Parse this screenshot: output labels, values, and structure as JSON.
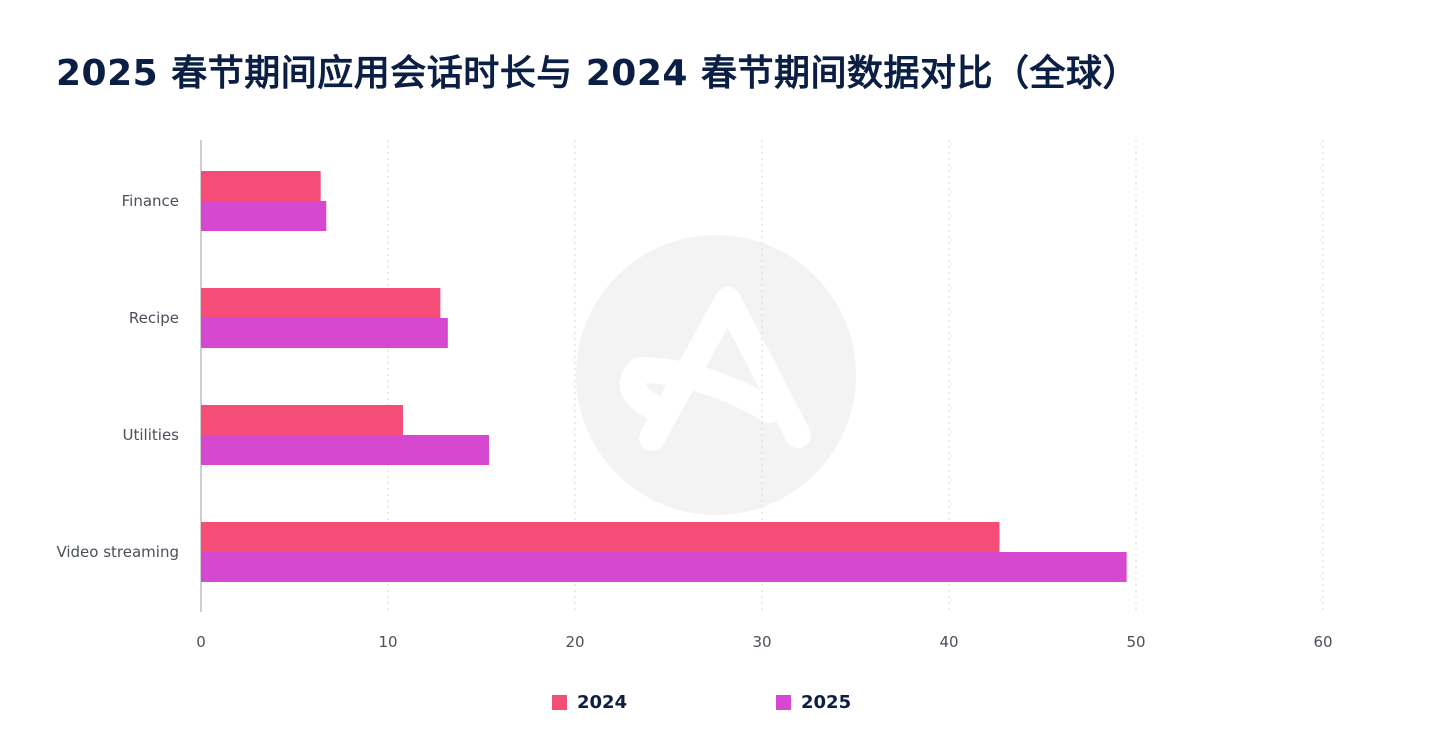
{
  "chart_data": {
    "type": "bar",
    "orientation": "horizontal",
    "title": "2025 春节期间应用会话时长与 2024 春节期间数据对比（全球）",
    "categories": [
      "Finance",
      "Recipe",
      "Utilities",
      "Video streaming"
    ],
    "series": [
      {
        "name": "2024",
        "color": "#f64d78",
        "values": [
          6.4,
          12.8,
          10.8,
          42.7
        ]
      },
      {
        "name": "2025",
        "color": "#d648cf",
        "values": [
          6.7,
          13.2,
          15.4,
          49.5
        ]
      }
    ],
    "xlim": [
      0,
      60
    ],
    "xticks": [
      0,
      10,
      20,
      30,
      40,
      50,
      60
    ],
    "grid": true,
    "legend": "bottom-center"
  }
}
